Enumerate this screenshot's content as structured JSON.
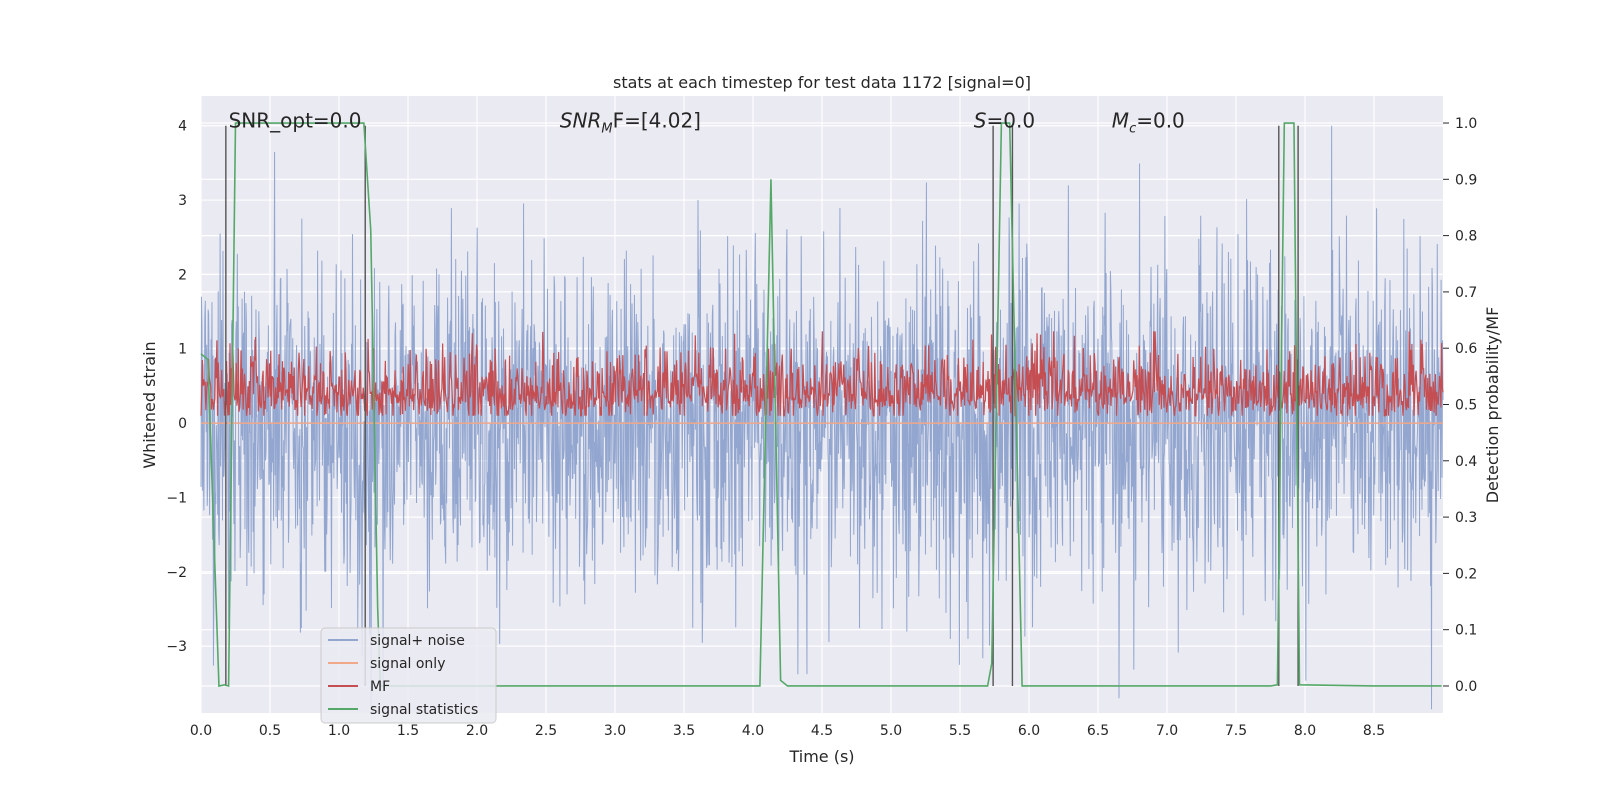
{
  "chart_data": {
    "type": "line",
    "title": "stats at each timestep for test data 1172 [signal=0]",
    "xlabel": "Time (s)",
    "ylabel": "Whitened strain",
    "ylabel_right": "Detection probability/MF",
    "xlim": [
      0.0,
      9.0
    ],
    "ylim": [
      -3.9,
      4.4
    ],
    "ylim_right": [
      -0.048,
      1.048
    ],
    "x_ticks": [
      "0.0",
      "0.5",
      "1.0",
      "1.5",
      "2.0",
      "2.5",
      "3.0",
      "3.5",
      "4.0",
      "4.5",
      "5.0",
      "5.5",
      "6.0",
      "6.5",
      "7.0",
      "7.5",
      "8.0",
      "8.5"
    ],
    "x_tick_values": [
      0.0,
      0.5,
      1.0,
      1.5,
      2.0,
      2.5,
      3.0,
      3.5,
      4.0,
      4.5,
      5.0,
      5.5,
      6.0,
      6.5,
      7.0,
      7.5,
      8.0,
      8.5
    ],
    "y_ticks": [
      "−3",
      "−2",
      "−1",
      "0",
      "1",
      "2",
      "3",
      "4"
    ],
    "y_tick_values": [
      -3,
      -2,
      -1,
      0,
      1,
      2,
      3,
      4
    ],
    "y_ticks_right": [
      "0.0",
      "0.1",
      "0.2",
      "0.3",
      "0.4",
      "0.5",
      "0.6",
      "0.7",
      "0.8",
      "0.9",
      "1.0"
    ],
    "y_tick_values_right": [
      0.0,
      0.1,
      0.2,
      0.3,
      0.4,
      0.5,
      0.6,
      0.7,
      0.8,
      0.9,
      1.0
    ],
    "grid": true,
    "legend_position": "lower-left",
    "annotations": [
      {
        "text": "SNR_opt=0.0",
        "x": 0.2,
        "y": 4.0
      },
      {
        "text": "SNR",
        "sub": "M",
        "tail": "F=[4.02]",
        "italic": true,
        "x": 2.6,
        "y": 4.0
      },
      {
        "text": "S",
        "tail": "=0.0",
        "italic": true,
        "x": 5.6,
        "y": 4.0
      },
      {
        "text": "M",
        "sub": "c",
        "tail": "=0.0",
        "italic": true,
        "x": 6.6,
        "y": 4.0
      }
    ],
    "series": [
      {
        "name": "signal+ noise",
        "color": "#92a6cf",
        "axis": "left",
        "kind": "noise",
        "sigma": 1.0
      },
      {
        "name": "signal only",
        "color": "#f0a78a",
        "axis": "left",
        "kind": "flat",
        "value": 0.0
      },
      {
        "name": "MF",
        "color": "#c44e52",
        "axis": "right",
        "kind": "mf",
        "base": 0.52,
        "spread": 0.04,
        "max": 0.63
      },
      {
        "name": "signal statistics",
        "color": "#55a868",
        "axis": "right",
        "x": [
          0.0,
          0.05,
          0.13,
          0.17,
          0.2,
          0.25,
          1.0,
          1.18,
          1.23,
          1.28,
          1.3,
          1.35,
          1.42,
          4.05,
          4.13,
          4.2,
          4.25,
          5.6,
          5.7,
          5.73,
          5.8,
          5.86,
          5.95,
          7.75,
          7.8,
          7.85,
          7.92,
          7.96,
          8.5,
          8.99
        ],
        "y": [
          0.59,
          0.58,
          0.0,
          0.002,
          0.0,
          1.0,
          1.0,
          1.0,
          0.81,
          0.14,
          0.0,
          0.0,
          0.0,
          0.0,
          0.9,
          0.01,
          0.0,
          0.0,
          0.0,
          0.04,
          1.0,
          1.0,
          0.0,
          0.0,
          0.002,
          1.0,
          1.0,
          0.002,
          0.0,
          0.0
        ]
      }
    ],
    "vlines": [
      0.18,
      1.19,
      5.74,
      5.88,
      7.81,
      7.95
    ]
  }
}
